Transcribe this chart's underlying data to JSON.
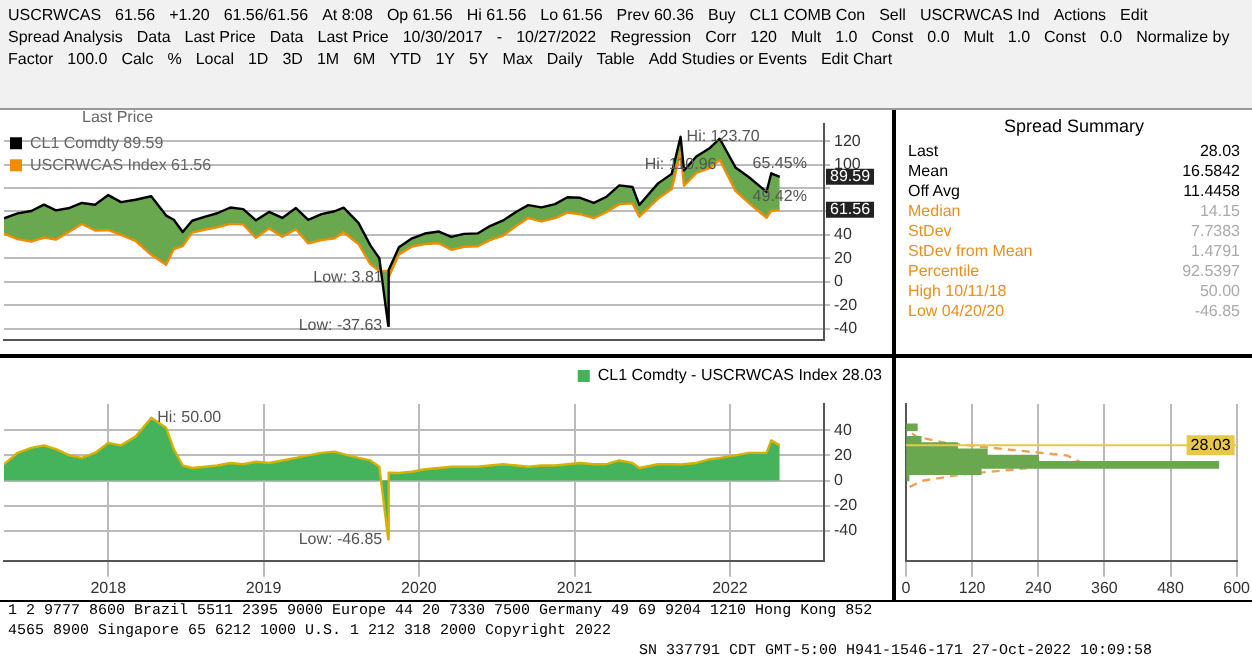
{
  "chart_data": [
    {
      "type": "other",
      "annotations": [
        "USCRWCAS",
        "61.56",
        "+1.20",
        "61.56/61.56",
        "At 8:08",
        "Op 61.56",
        "Hi 61.56",
        "Lo 61.56",
        "Prev 60.36",
        "Buy",
        "CL1 COMB Con",
        "Sell",
        "USCRWCAS Ind",
        "Actions",
        "Edit",
        "Spread Analysis",
        "Data",
        "Last Price",
        "Data",
        "Last Price",
        "10/30/2017",
        "-",
        "10/27/2022",
        "Regression",
        "Corr",
        "120",
        "Mult",
        "1.0",
        "Const",
        "0.0",
        "Mult",
        "1.0",
        "Const",
        "0.0",
        "Normalize by",
        "Factor",
        "100.0",
        "Calc",
        "%",
        "Local",
        "1D",
        "3D",
        "1M",
        "6M",
        "YTD",
        "1Y",
        "5Y",
        "Max",
        "Daily",
        "Table",
        "Add Studies or Events",
        "Edit Chart"
      ]
    },
    {
      "type": "line",
      "legend": "top left",
      "legend_title": "Last Price",
      "grid": "y",
      "tick_labels": "y",
      "xlim": [
        "2017-10-30",
        "2023-02-08"
      ],
      "ylim": [
        -50,
        135
      ],
      "yticks": [
        120,
        100,
        {
          "value": 80,
          "label": null
        },
        {
          "value": 60,
          "label": null
        },
        40,
        20,
        0,
        -20,
        -40
      ],
      "x": [
        "2017-10-30",
        "2017-12-01",
        "2018-01-02",
        "2018-02-01",
        "2018-03-01",
        "2018-04-02",
        "2018-05-01",
        "2018-06-01",
        "2018-07-02",
        "2018-08-01",
        "2018-09-04",
        "2018-10-11",
        "2018-11-15",
        "2018-12-03",
        "2018-12-24",
        "2019-01-15",
        "2019-02-15",
        "2019-03-15",
        "2019-04-15",
        "2019-05-15",
        "2019-06-14",
        "2019-07-15",
        "2019-08-15",
        "2019-09-16",
        "2019-10-15",
        "2019-11-15",
        "2019-12-16",
        "2020-01-06",
        "2020-02-10",
        "2020-03-09",
        "2020-03-30",
        "2020-04-20",
        "2020-04-21",
        "2020-05-15",
        "2020-06-15",
        "2020-07-15",
        "2020-08-17",
        "2020-09-15",
        "2020-10-15",
        "2020-11-16",
        "2020-12-15",
        "2021-01-15",
        "2021-02-16",
        "2021-03-15",
        "2021-04-15",
        "2021-05-17",
        "2021-06-15",
        "2021-07-15",
        "2021-08-16",
        "2021-09-15",
        "2021-10-15",
        "2021-11-15",
        "2021-12-01",
        "2022-01-14",
        "2022-02-15",
        "2022-03-08",
        "2022-03-16",
        "2022-04-14",
        "2022-05-16",
        "2022-06-08",
        "2022-07-15",
        "2022-08-15",
        "2022-09-26",
        "2022-10-07",
        "2022-10-27"
      ],
      "series": [
        {
          "name": "CL1 Comdty 89.59",
          "color": "#000000",
          "values": [
            54.15,
            58.4,
            60.4,
            65.8,
            61.0,
            63.0,
            67.3,
            65.8,
            74.0,
            68.0,
            70.0,
            73.0,
            56.5,
            53.0,
            42.5,
            52.1,
            55.6,
            58.5,
            63.4,
            62.0,
            52.5,
            59.6,
            54.5,
            62.9,
            52.8,
            57.7,
            60.2,
            63.3,
            50.3,
            31.1,
            20.1,
            -37.63,
            10.01,
            29.4,
            37.1,
            41.2,
            42.9,
            38.3,
            40.9,
            41.3,
            47.6,
            52.4,
            60.0,
            65.4,
            63.5,
            66.3,
            72.1,
            71.7,
            67.3,
            72.6,
            82.3,
            80.9,
            65.6,
            84.0,
            92.1,
            123.7,
            95.0,
            106.9,
            114.2,
            122.1,
            97.6,
            89.4,
            76.7,
            92.6,
            89.59
          ]
        },
        {
          "name": "USCRWCAS Index 61.56",
          "color": "#f08c00",
          "values": [
            41.15,
            36.4,
            34.4,
            37.8,
            36.0,
            43.0,
            49.3,
            43.8,
            44.0,
            40.0,
            35.0,
            23.0,
            14.5,
            28.0,
            30.5,
            42.1,
            44.6,
            46.5,
            49.4,
            49.0,
            37.5,
            45.6,
            38.5,
            44.9,
            32.8,
            35.7,
            37.2,
            42.3,
            32.3,
            15.1,
            9.1,
            9.22,
            3.81,
            23.4,
            30.1,
            32.2,
            32.9,
            27.3,
            29.9,
            30.3,
            35.6,
            39.4,
            48.0,
            54.4,
            51.5,
            54.3,
            59.1,
            57.7,
            54.3,
            59.6,
            66.3,
            66.9,
            55.6,
            71.0,
            79.1,
            110.96,
            82.0,
            92.9,
            97.2,
            104.1,
            77.6,
            67.4,
            54.7,
            60.6,
            61.56
          ]
        }
      ],
      "annotations": [
        {
          "text": "Hi: 123.70",
          "x": "2022-03-08",
          "y": 123.7
        },
        {
          "text": "Hi: 110.96",
          "x": "2022-03-08",
          "y": 110.96
        },
        {
          "text": "Low: 3.81",
          "x": "2020-04-21",
          "y": 3.81
        },
        {
          "text": "Low: -37.63",
          "x": "2020-04-20",
          "y": -37.63
        },
        {
          "text": "65.45%",
          "x": "2022-10-27",
          "y": 89.59
        },
        {
          "text": "49.42%",
          "x": "2022-10-27",
          "y": 61.56
        },
        {
          "text": "89.59",
          "y": 89.59
        },
        {
          "text": "61.56",
          "y": 61.56
        }
      ]
    },
    {
      "type": "other",
      "title": "Spread Summary",
      "annotations": [
        "Last",
        "28.03",
        "Mean",
        "16.5842",
        "Off Avg",
        "11.4458",
        "Median",
        "14.15",
        "StDev",
        "7.7383",
        "StDev from Mean",
        "1.4791",
        "Percentile",
        "92.5397",
        "High 10/11/18",
        "50.00",
        "Low 04/20/20",
        "-46.85"
      ]
    },
    {
      "type": "area",
      "legend": "top right",
      "grid": true,
      "xlim": [
        "2017-10-30",
        "2023-02-08"
      ],
      "xticks": [
        {
          "value": "2018-07-02",
          "label": "2018"
        },
        {
          "value": "2019-07-02",
          "label": "2019"
        },
        {
          "value": "2020-07-01",
          "label": "2020"
        },
        {
          "value": "2021-07-02",
          "label": "2021"
        },
        {
          "value": "2022-07-02",
          "label": "2022"
        }
      ],
      "ylim": [
        -64,
        61
      ],
      "yticks": [
        40,
        20,
        0,
        -20,
        -40
      ],
      "x": [
        "2017-10-30",
        "2017-12-01",
        "2018-01-02",
        "2018-02-01",
        "2018-03-01",
        "2018-04-02",
        "2018-05-01",
        "2018-06-01",
        "2018-07-02",
        "2018-08-01",
        "2018-09-04",
        "2018-10-11",
        "2018-11-15",
        "2018-12-03",
        "2018-12-24",
        "2019-01-15",
        "2019-02-15",
        "2019-03-15",
        "2019-04-15",
        "2019-05-15",
        "2019-06-14",
        "2019-07-15",
        "2019-08-15",
        "2019-09-16",
        "2019-10-15",
        "2019-11-15",
        "2019-12-16",
        "2020-01-06",
        "2020-02-10",
        "2020-03-09",
        "2020-03-30",
        "2020-04-20",
        "2020-04-21",
        "2020-05-15",
        "2020-06-15",
        "2020-07-15",
        "2020-08-17",
        "2020-09-15",
        "2020-10-15",
        "2020-11-16",
        "2020-12-15",
        "2021-01-15",
        "2021-02-16",
        "2021-03-15",
        "2021-04-15",
        "2021-05-17",
        "2021-06-15",
        "2021-07-15",
        "2021-08-16",
        "2021-09-15",
        "2021-10-15",
        "2021-11-15",
        "2021-12-01",
        "2022-01-14",
        "2022-02-15",
        "2022-03-08",
        "2022-03-16",
        "2022-04-14",
        "2022-05-16",
        "2022-06-08",
        "2022-07-15",
        "2022-08-15",
        "2022-09-26",
        "2022-10-07",
        "2022-10-27"
      ],
      "series": [
        {
          "name": "CL1 Comdty - USCRWCAS Index 28.03",
          "color": "#44b35c",
          "values": [
            13,
            22,
            26,
            28,
            25,
            20,
            18,
            22,
            30,
            28,
            35,
            50,
            42,
            25,
            12,
            10,
            11,
            12,
            14,
            13,
            15,
            14,
            16,
            18,
            20,
            22,
            23,
            21,
            18,
            16,
            11,
            -46.85,
            6.2,
            6,
            7,
            9,
            10,
            11,
            11,
            11,
            12,
            13,
            12,
            11,
            12,
            12,
            13,
            14,
            13,
            13,
            16,
            14,
            10,
            13,
            13,
            12.74,
            13,
            14,
            17,
            18,
            20,
            22,
            22,
            32,
            28.03
          ]
        }
      ],
      "annotations": [
        {
          "text": "Hi: 50.00",
          "x": "2018-10-11",
          "y": 50
        },
        {
          "text": "Low: -46.85",
          "x": "2020-04-20",
          "y": -46.85
        }
      ]
    },
    {
      "type": "histogram",
      "orientation": "horizontal",
      "tick_labels": "x",
      "grid": "x",
      "color": "#6aa84f",
      "bins": [
        0,
        5,
        10,
        15,
        20,
        25,
        30,
        35,
        40,
        45
      ],
      "values": [
        5,
        136,
        567,
        240,
        147,
        93,
        27,
        0,
        20
      ],
      "xlim": [
        0,
        600
      ],
      "xticks": [
        0,
        120,
        240,
        360,
        480,
        600
      ],
      "ylim": [
        -64,
        61
      ],
      "yticks": [
        40,
        20,
        0,
        -20,
        -40
      ],
      "series": [
        {
          "type": "line",
          "line_style": "dashed",
          "color": "#f0a050",
          "x": [
            -5,
            0,
            5,
            10,
            15,
            20,
            25,
            30,
            35,
            40
          ],
          "values": [
            6.6,
            32,
            105,
            224,
            315,
            292,
            178,
            72,
            19,
            3
          ]
        }
      ],
      "ref_lines": [
        {
          "axis": "y",
          "value": 28.03,
          "label": "28.03",
          "color": "#e8c84a"
        }
      ]
    },
    {
      "type": "other",
      "annotations": [
        "1 2 9777 8600 Brazil 5511 2395 9000 Europe 44 20 7330 7500 Germany 49 69 9204 1210 Hong Kong 852",
        "4565 8900 Singapore 65 6212 1000 U.S. 1 212 318 2000 Copyright 2022",
        "SN 337791 CDT GMT-5:00 H941-1546-171 27-Oct-2022 10:09:58"
      ]
    }
  ]
}
